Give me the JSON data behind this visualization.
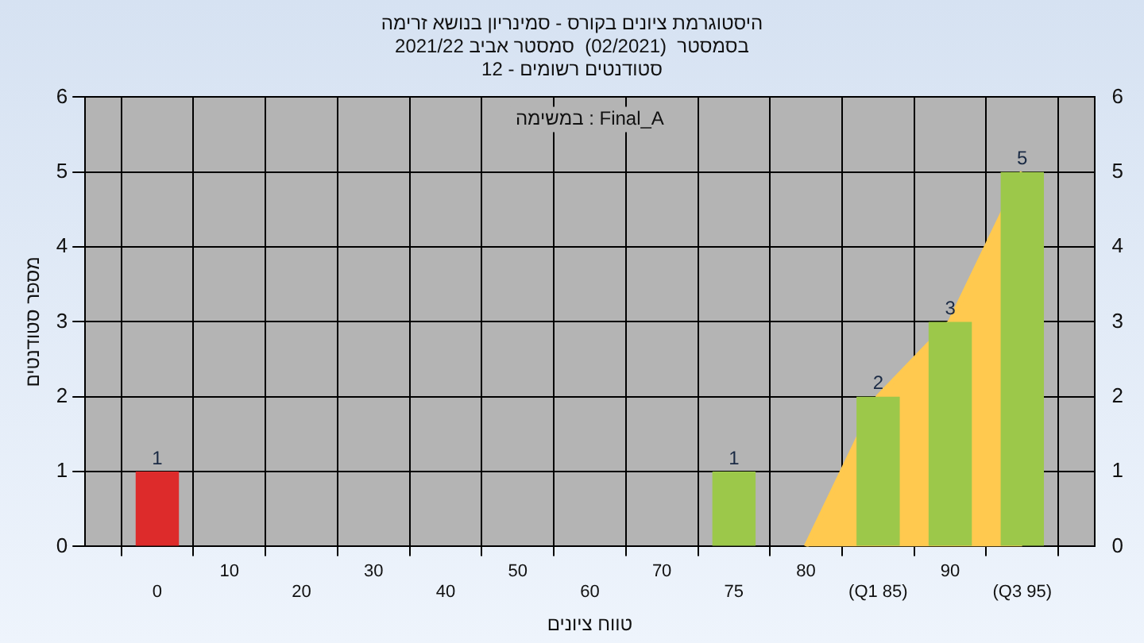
{
  "chart_data": {
    "type": "bar",
    "title": "היסטוגרמת ציונים בקורס - סמינריון בנושא זרימה",
    "subtitle": "בסמסטר  (02/2021)  סמסטר אביב 2021/22\nסטודנטים רשומים - 12",
    "xlabel": "טווח ציונים",
    "ylabel": "מספר סטודנטים",
    "categories": [
      null,
      "0",
      "10",
      "20",
      "30",
      "40",
      "50",
      "60",
      "70",
      "75",
      "80",
      "(Q1 85)",
      "90",
      "(Q3 95)",
      null
    ],
    "series": [
      {
        "type": "area",
        "color": "#ffc94f",
        "values": [
          null,
          null,
          null,
          null,
          null,
          null,
          null,
          null,
          null,
          null,
          0,
          2,
          3,
          5,
          null
        ]
      },
      {
        "colors": [
          "#9cc84a",
          "#dd2b2b",
          "#9cc84a",
          "#9cc84a",
          "#9cc84a",
          "#9cc84a",
          "#9cc84a",
          "#9cc84a",
          "#9cc84a",
          "#9cc84a",
          "#9cc84a",
          "#9cc84a",
          "#9cc84a",
          "#9cc84a",
          "#9cc84a"
        ],
        "values": [
          null,
          1,
          0,
          0,
          0,
          0,
          0,
          0,
          0,
          1,
          0,
          2,
          3,
          5,
          null
        ],
        "value_labels": [
          null,
          "1",
          null,
          null,
          null,
          null,
          null,
          null,
          null,
          "1",
          null,
          "2",
          "3",
          "5",
          null
        ]
      }
    ],
    "ylim": [
      0,
      6
    ],
    "yticks": [
      0,
      1,
      2,
      3,
      4,
      5,
      6
    ],
    "y2lim": [
      0,
      6
    ],
    "y2ticks": [
      0,
      1,
      2,
      3,
      4,
      5,
      6
    ],
    "grid": true,
    "legend": false,
    "annotations": [
      "במשימה : Final_A"
    ]
  }
}
